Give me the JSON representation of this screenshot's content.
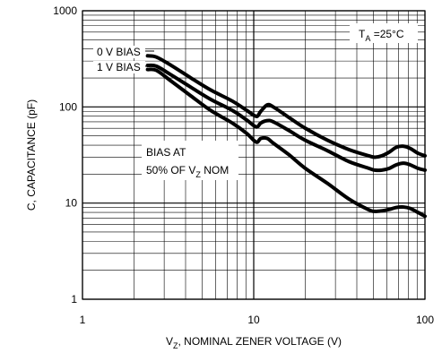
{
  "chart_data": {
    "type": "line",
    "x_scale": "log",
    "y_scale": "log",
    "xlim": [
      1,
      100
    ],
    "ylim": [
      1,
      1000
    ],
    "grid": true,
    "xlabel": {
      "pre": "V",
      "sub": "Z",
      "post": ", NOMINAL ZENER VOLTAGE (V)"
    },
    "ylabel": "C, CAPACITANCE (pF)",
    "x_ticks": [
      {
        "value": 1,
        "label": "1"
      },
      {
        "value": 10,
        "label": "10"
      },
      {
        "value": 100,
        "label": "100"
      }
    ],
    "y_ticks": [
      {
        "value": 1,
        "label": "1"
      },
      {
        "value": 10,
        "label": "10"
      },
      {
        "value": 100,
        "label": "100"
      },
      {
        "value": 1000,
        "label": "1000"
      }
    ],
    "annotations": {
      "temperature": {
        "pre": "T",
        "sub": "A",
        "post": " =25°C"
      },
      "bias_line1": "BIAS AT",
      "bias_line2": {
        "pre": "50% OF V",
        "sub": "Z",
        "post": " NOM"
      }
    },
    "series": [
      {
        "name": "0 V BIAS",
        "x": [
          2.4,
          2.7,
          3.3,
          4.3,
          5.6,
          7.5,
          9.1,
          10.0,
          10.5,
          11.0,
          12.0,
          13.0,
          16.0,
          20.0,
          27.0,
          36.0,
          47.0,
          51.0,
          56.0,
          62.0,
          68.0,
          75.0,
          82.0,
          91.0,
          100.0
        ],
        "values": [
          340,
          330,
          270,
          200,
          150,
          115,
          92,
          82,
          80,
          90,
          105,
          100,
          78,
          60,
          45,
          36,
          31,
          30,
          31,
          34,
          38,
          39,
          37,
          33,
          31
        ]
      },
      {
        "name": "1 V BIAS",
        "x": [
          2.4,
          2.7,
          3.3,
          4.3,
          5.6,
          7.5,
          9.1,
          10.0,
          10.5,
          11.0,
          12.0,
          13.0,
          16.0,
          20.0,
          27.0,
          36.0,
          47.0,
          51.0,
          56.0,
          62.0,
          68.0,
          75.0,
          82.0,
          91.0,
          100.0
        ],
        "values": [
          270,
          265,
          215,
          160,
          120,
          92,
          73,
          64,
          62,
          68,
          72,
          70,
          57,
          45,
          35,
          27,
          23,
          22,
          22,
          23,
          25,
          26,
          25,
          23,
          22
        ]
      },
      {
        "name": "",
        "x": [
          2.4,
          2.7,
          3.3,
          4.3,
          5.6,
          7.5,
          9.1,
          10.0,
          10.5,
          11.0,
          12.0,
          13.0,
          16.0,
          20.0,
          27.0,
          36.0,
          47.0,
          51.0,
          56.0,
          62.0,
          68.0,
          75.0,
          82.0,
          91.0,
          100.0
        ],
        "values": [
          245,
          240,
          185,
          130,
          92,
          68,
          53,
          45,
          43,
          47,
          47,
          42,
          32,
          23,
          16,
          11,
          8.5,
          8.2,
          8.3,
          8.6,
          9.0,
          9.1,
          8.8,
          8.0,
          7.3
        ]
      }
    ]
  }
}
